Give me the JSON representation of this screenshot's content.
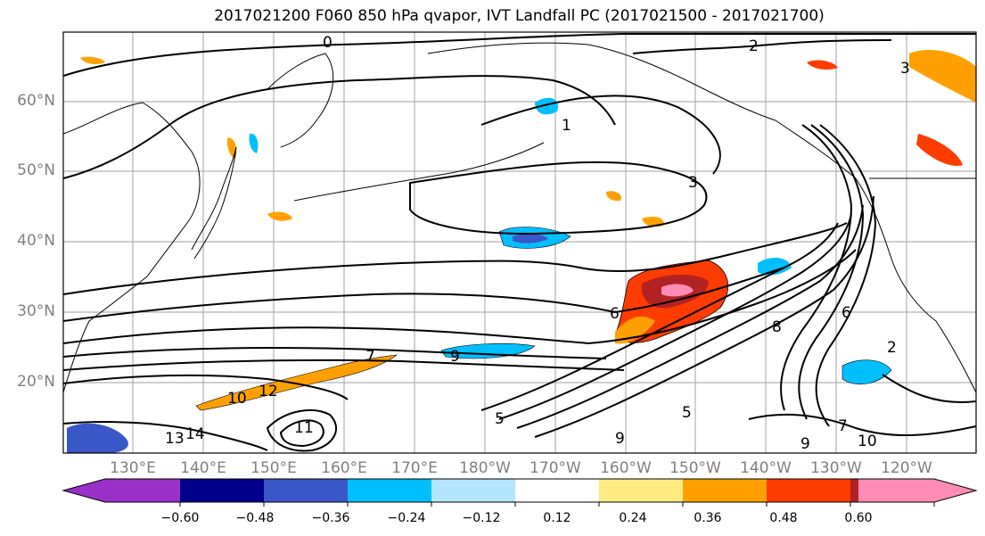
{
  "figure": {
    "title": "2017021200 F060 850 hPa qvapor, IVT Landfall PC (2017021500 - 2017021700)"
  },
  "map": {
    "projection": "PlateCarree",
    "lon_range": [
      "120°E",
      "115°W"
    ],
    "lat_range": [
      "10°N",
      "70°N"
    ],
    "lat_labels": [
      "60°N",
      "50°N",
      "40°N",
      "30°N",
      "20°N"
    ],
    "lon_labels": [
      "130°E",
      "140°E",
      "150°E",
      "160°E",
      "170°E",
      "180°W",
      "170°W",
      "160°W",
      "150°W",
      "140°W",
      "130°W",
      "120°W"
    ],
    "gridlines": true,
    "contour_labels": [
      "0",
      "1",
      "2",
      "3",
      "3",
      "5",
      "6",
      "7",
      "7",
      "9",
      "9",
      "10",
      "10",
      "11",
      "12",
      "13",
      "14",
      "2",
      "5",
      "6",
      "8",
      "9"
    ],
    "filled_colors": {
      "positive_strong": "#ff8cb4",
      "positive_high": "#b22222",
      "positive_mid2": "#ff3c00",
      "positive_mid": "#ffa000",
      "positive_low": "#ffeb82",
      "negative_low": "#b3e5fc",
      "negative_mid": "#00bfff",
      "negative_mid2": "#3a57c8",
      "negative_high": "#00008b",
      "negative_strong": "#9b30c8"
    }
  },
  "colorbar": {
    "ticks": [
      "−0.60",
      "−0.48",
      "−0.36",
      "−0.24",
      "−0.12",
      "0.12",
      "0.24",
      "0.36",
      "0.48",
      "0.60"
    ],
    "colors": [
      "#9b30c8",
      "#00008b",
      "#3a57c8",
      "#00bfff",
      "#b3e5fc",
      "#ffffff",
      "#ffeb82",
      "#ffa000",
      "#ff3c00",
      "#b22222",
      "#ff8cb4"
    ]
  }
}
